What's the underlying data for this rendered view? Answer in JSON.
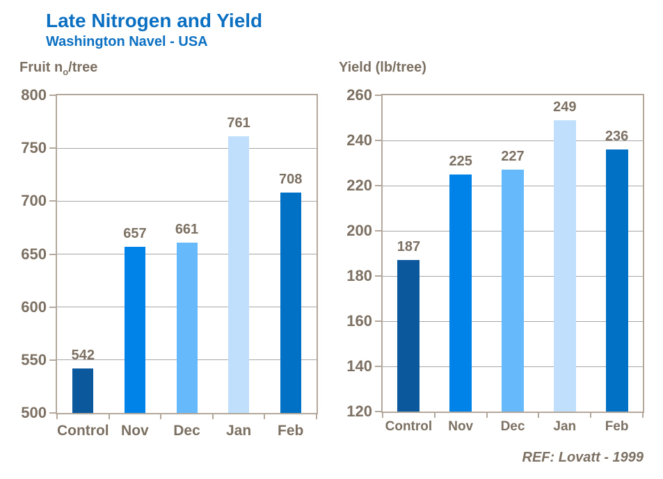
{
  "header": {
    "title": "Late Nitrogen and Yield",
    "subtitle": "Washington Navel - USA"
  },
  "footer": {
    "ref": "REF: Lovatt - 1999"
  },
  "colors": {
    "title_blue": "#0c70c2",
    "text_brown": "#7c7063",
    "axis_tan": "#b2a79a",
    "gridline_gray": "#a6a6a6",
    "bar_palette": [
      "#0b589c",
      "#0083e8",
      "#66b9fb",
      "#bfdffc",
      "#0071c5"
    ]
  },
  "chart_data": [
    {
      "type": "bar",
      "title": {
        "pre": "Fruit n",
        "sub": "o",
        "post": "/tree"
      },
      "categories": [
        "Control",
        "Nov",
        "Dec",
        "Jan",
        "Feb"
      ],
      "values": [
        542,
        657,
        661,
        761,
        708
      ],
      "ylim": [
        500,
        800
      ],
      "ytick_step": 50,
      "ytick_labels": [
        "800",
        "750",
        "700",
        "650",
        "600",
        "550",
        "500"
      ],
      "grid": true,
      "legend": false,
      "data_labels": true
    },
    {
      "type": "bar",
      "title": {
        "pre": "Yield (lb/tree)",
        "sub": "",
        "post": ""
      },
      "categories": [
        "Control",
        "Nov",
        "Dec",
        "Jan",
        "Feb"
      ],
      "values": [
        187,
        225,
        227,
        249,
        236
      ],
      "ylim": [
        120,
        260
      ],
      "ytick_step": 20,
      "ytick_labels": [
        "260",
        "240",
        "220",
        "200",
        "180",
        "160",
        "140",
        "120"
      ],
      "grid": true,
      "legend": false,
      "data_labels": true
    }
  ]
}
